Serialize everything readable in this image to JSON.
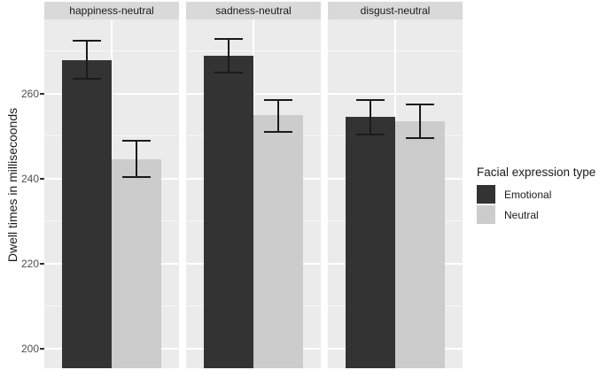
{
  "y_axis": {
    "title": "Dwell times in millisecoonds",
    "tick_labels": [
      "200",
      "220",
      "240",
      "260"
    ]
  },
  "legend": {
    "title": "Facial expression type",
    "items": [
      {
        "label": "Emotional",
        "color": "#333333"
      },
      {
        "label": "Neutral",
        "color": "#cccccc"
      }
    ]
  },
  "chart_data": {
    "type": "bar",
    "faceted": true,
    "facets": [
      "happiness-neutral",
      "sadness-neutral",
      "disgust-neutral"
    ],
    "categories": [
      "happiness-neutral",
      "sadness-neutral",
      "disgust-neutral"
    ],
    "series": [
      {
        "name": "Emotional",
        "color": "#333333",
        "values": [
          268,
          269,
          254.5
        ],
        "ci_low": [
          263.5,
          265,
          250.5
        ],
        "ci_high": [
          272.5,
          273,
          258.5
        ]
      },
      {
        "name": "Neutral",
        "color": "#cccccc",
        "values": [
          244.5,
          255,
          253.5
        ],
        "ci_low": [
          240.5,
          251,
          249.5
        ],
        "ci_high": [
          249,
          258.5,
          257.5
        ]
      }
    ],
    "title": "",
    "xlabel": "",
    "ylabel": "Dwell times in millisecoonds",
    "y_ticks": [
      200,
      220,
      240,
      260
    ],
    "y_minor_ticks": [
      210,
      230,
      250,
      270
    ],
    "ylim": [
      195.4,
      277.5
    ],
    "error_bars": true,
    "grid": true,
    "legend_position": "right",
    "legend_title": "Facial expression type"
  },
  "colors": {
    "panel_bg": "#ebebeb",
    "strip_bg": "#d9d9d9",
    "grid": "#ffffff",
    "error_bar": "#1a1a1a",
    "tick_text": "#4d4d4d",
    "text": "#1a1a1a",
    "emotional_bar": "#333333",
    "neutral_bar": "#cccccc"
  }
}
